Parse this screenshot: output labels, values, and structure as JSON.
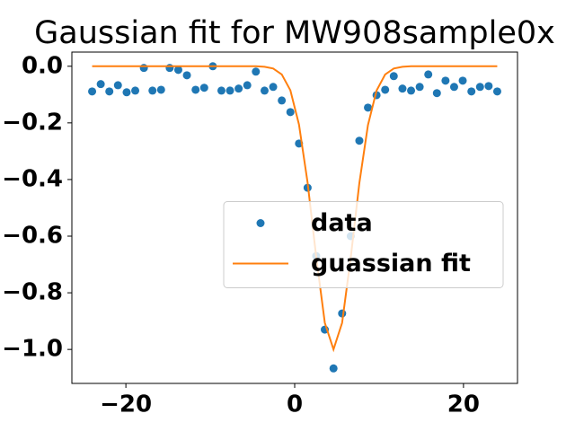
{
  "chart_data": {
    "type": "scatter",
    "title": "Gaussian fit for MW908sample0x",
    "x": [
      -24,
      -22.98,
      -21.96,
      -20.94,
      -19.91,
      -18.89,
      -17.87,
      -16.85,
      -15.83,
      -14.81,
      -13.79,
      -12.77,
      -11.74,
      -10.72,
      -9.7,
      -8.68,
      -7.66,
      -6.64,
      -5.62,
      -4.6,
      -3.57,
      -2.55,
      -1.53,
      -0.51,
      0.51,
      1.53,
      2.55,
      3.57,
      4.6,
      5.62,
      6.64,
      7.66,
      8.68,
      9.7,
      10.72,
      11.74,
      12.77,
      13.79,
      14.81,
      15.83,
      16.85,
      17.87,
      18.89,
      19.91,
      20.94,
      21.96,
      22.98,
      24
    ],
    "series": [
      {
        "name": "data",
        "type": "scatter",
        "color": "#1f77b4",
        "values": [
          -0.089,
          -0.063,
          -0.089,
          -0.067,
          -0.092,
          -0.086,
          -0.006,
          -0.086,
          -0.083,
          -0.006,
          -0.013,
          -0.032,
          -0.083,
          -0.076,
          0.0,
          -0.086,
          -0.086,
          -0.079,
          -0.067,
          -0.019,
          -0.086,
          -0.073,
          -0.121,
          -0.162,
          -0.273,
          -0.429,
          -0.67,
          -0.93,
          -1.067,
          -0.873,
          -0.6,
          -0.263,
          -0.146,
          -0.102,
          -0.083,
          -0.035,
          -0.079,
          -0.086,
          -0.073,
          -0.029,
          -0.095,
          -0.051,
          -0.073,
          -0.051,
          -0.089,
          -0.073,
          -0.07,
          -0.089
        ]
      },
      {
        "name": "guassian fit",
        "type": "line",
        "color": "#ff7f0e",
        "values": [
          0,
          0,
          0,
          0,
          0,
          0,
          0,
          0,
          0,
          0,
          0,
          0,
          0,
          0,
          0,
          0,
          0,
          0,
          0,
          0,
          -0.002,
          -0.008,
          -0.029,
          -0.085,
          -0.206,
          -0.411,
          -0.673,
          -0.906,
          -1.0,
          -0.906,
          -0.676,
          -0.413,
          -0.208,
          -0.086,
          -0.029,
          -0.008,
          -0.002,
          0,
          0,
          0,
          0,
          0,
          0,
          0,
          0,
          0,
          0,
          0
        ]
      }
    ],
    "xlim": [
      -26.4,
      26.4
    ],
    "ylim": [
      -1.12,
      0.05
    ],
    "xticks": [
      {
        "value": -20,
        "label": "−20"
      },
      0,
      20
    ],
    "yticks": [
      {
        "value": 0,
        "label": "0.0"
      },
      {
        "value": -0.2,
        "label": "−0.2"
      },
      {
        "value": -0.4,
        "label": "−0.4"
      },
      {
        "value": -0.6,
        "label": "−0.6"
      },
      {
        "value": -0.8,
        "label": "−0.8"
      },
      {
        "value": -1.0,
        "label": "−1.0"
      }
    ],
    "legend": "center right"
  }
}
